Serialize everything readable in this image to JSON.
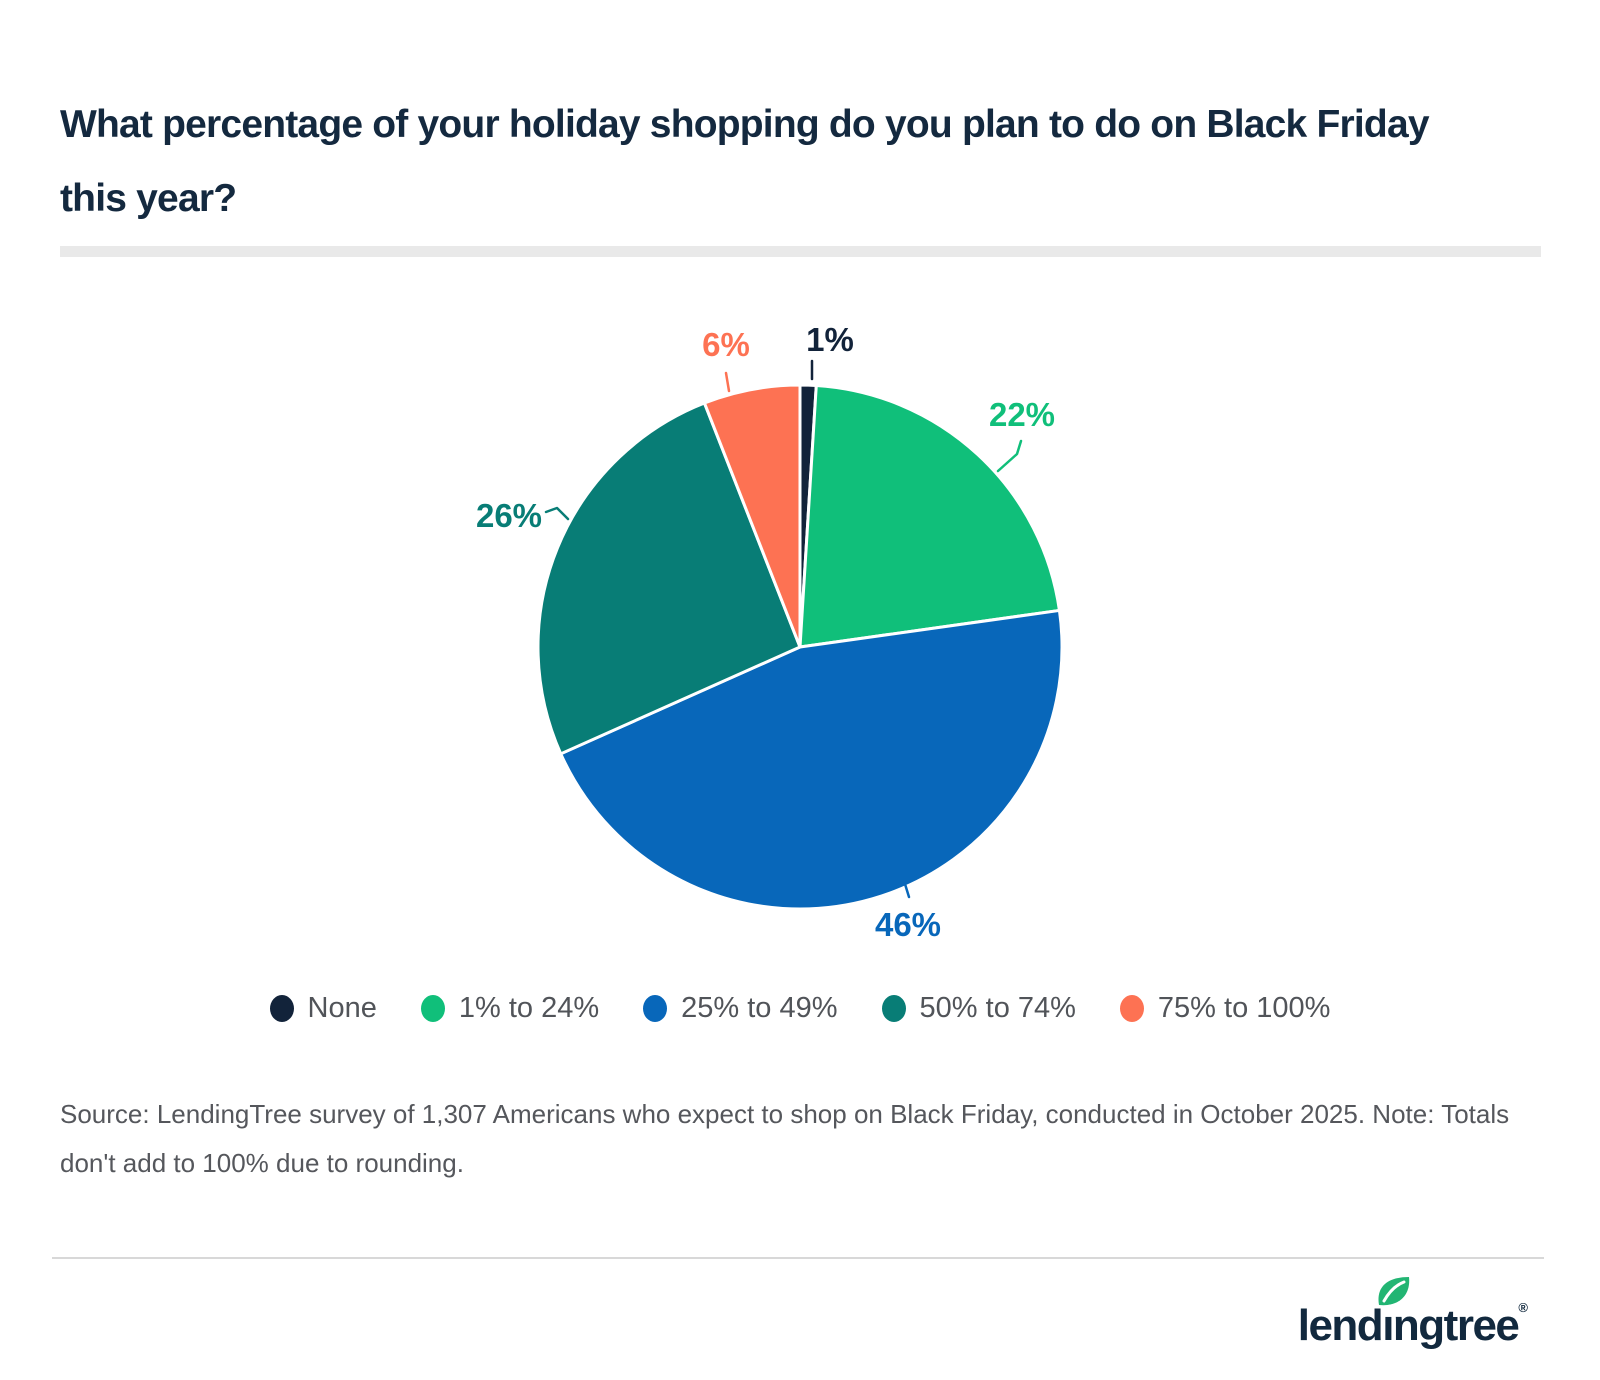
{
  "title": "What percentage of your holiday shopping do you plan to do on Black Friday this year?",
  "chart_data": {
    "type": "pie",
    "categories": [
      "None",
      "1% to 24%",
      "25% to 49%",
      "50% to 74%",
      "75% to 100%"
    ],
    "values": [
      1,
      22,
      46,
      26,
      6
    ],
    "labels": [
      "1%",
      "22%",
      "46%",
      "26%",
      "6%"
    ],
    "colors": [
      "#12233a",
      "#10bf7a",
      "#0867ba",
      "#087d76",
      "#fd7253"
    ],
    "start_angle": "top",
    "direction": "clockwise",
    "legend_position": "bottom"
  },
  "source": "Source: LendingTree survey of 1,307 Americans who expect to shop on Black Friday, conducted in October 2025. Note: Totals don't add to 100% due to rounding.",
  "footer": {
    "logo_text": "lendingtree",
    "registered_mark": "®",
    "leaf_color": "#22b573"
  }
}
